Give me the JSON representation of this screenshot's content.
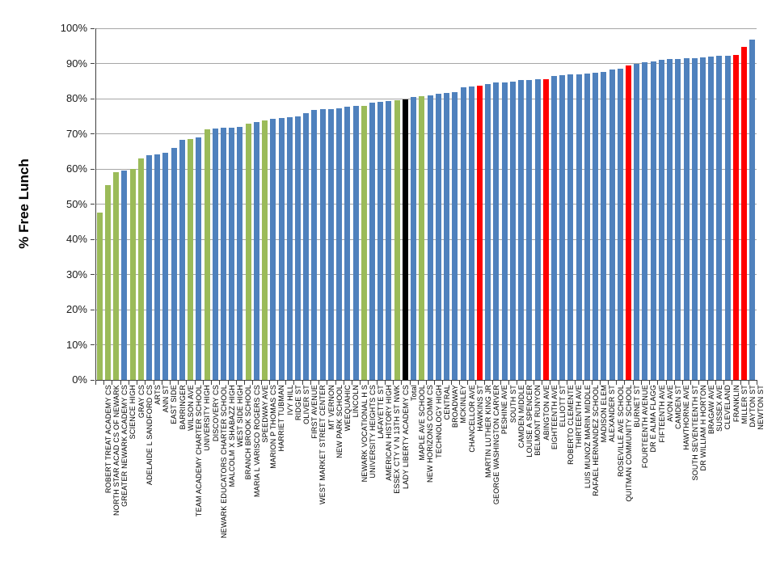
{
  "chart_data": {
    "type": "bar",
    "title": "",
    "xlabel": "",
    "ylabel": "% Free Lunch",
    "ylim": [
      0,
      100
    ],
    "grid": true,
    "legend": false,
    "yticks": [
      "0%",
      "10%",
      "20%",
      "30%",
      "40%",
      "50%",
      "60%",
      "70%",
      "80%",
      "90%",
      "100%"
    ],
    "palette": {
      "blue": "#4F81BD",
      "green": "#9BBB59",
      "red": "#FF0000",
      "black": "#000000"
    },
    "bars": [
      {
        "label": "ROBERT TREAT ACADEMY CS",
        "value": 47.5,
        "color": "green"
      },
      {
        "label": "NORTH STAR ACAD CS OF NEWARK",
        "value": 55.5,
        "color": "green"
      },
      {
        "label": "GREATER NEWARK ACADEMY CS",
        "value": 59.0,
        "color": "green"
      },
      {
        "label": "SCIENCE HIGH",
        "value": 59.5,
        "color": "blue"
      },
      {
        "label": "GRAY CS",
        "value": 60.0,
        "color": "green"
      },
      {
        "label": "ADELAIDE L  SANDFORD CS",
        "value": 63.0,
        "color": "green"
      },
      {
        "label": "ARTS",
        "value": 63.8,
        "color": "blue"
      },
      {
        "label": "ANN ST",
        "value": 64.1,
        "color": "blue"
      },
      {
        "label": "EAST SIDE",
        "value": 64.5,
        "color": "blue"
      },
      {
        "label": "BARRINGER",
        "value": 66.0,
        "color": "blue"
      },
      {
        "label": "WILSON AVE",
        "value": 68.2,
        "color": "blue"
      },
      {
        "label": "TEAM ACADEMY CHARTER SCHOOL",
        "value": 68.6,
        "color": "green"
      },
      {
        "label": "UNIVERSITY HIGH",
        "value": 68.9,
        "color": "blue"
      },
      {
        "label": "DISCOVERY CS",
        "value": 71.2,
        "color": "green"
      },
      {
        "label": "NEWARK EDUCATORS CHARTER SCHOOL",
        "value": 71.5,
        "color": "blue"
      },
      {
        "label": "MALCOLM X SHABAZZ HIGH",
        "value": 71.7,
        "color": "blue"
      },
      {
        "label": "WEST SIDE HIGH",
        "value": 71.8,
        "color": "blue"
      },
      {
        "label": "BRANCH BROOK SCHOOL",
        "value": 72.0,
        "color": "blue"
      },
      {
        "label": "MARIA L  VARISCO  ROGERS CS",
        "value": 72.8,
        "color": "green"
      },
      {
        "label": "SPEEDWAY AVE",
        "value": 73.3,
        "color": "blue"
      },
      {
        "label": "MARION P  THOMAS CS",
        "value": 73.8,
        "color": "green"
      },
      {
        "label": "HARRIET TUBMAN",
        "value": 74.2,
        "color": "blue"
      },
      {
        "label": "IVY HILL",
        "value": 74.5,
        "color": "blue"
      },
      {
        "label": "RIDGE ST",
        "value": 74.7,
        "color": "blue"
      },
      {
        "label": "OLIVER ST",
        "value": 74.9,
        "color": "blue"
      },
      {
        "label": "FIRST AVENUE",
        "value": 75.8,
        "color": "blue"
      },
      {
        "label": "WEST MARKET STREET CENTER",
        "value": 76.7,
        "color": "blue"
      },
      {
        "label": "MT VERNON",
        "value": 76.9,
        "color": "blue"
      },
      {
        "label": "NEW PARK SCHOOL",
        "value": 77.1,
        "color": "blue"
      },
      {
        "label": "WEEQUAHIC",
        "value": 77.3,
        "color": "blue"
      },
      {
        "label": "LINCOLN",
        "value": 77.7,
        "color": "blue"
      },
      {
        "label": "NEWARK VOCATIONAL H S",
        "value": 78.0,
        "color": "blue"
      },
      {
        "label": "UNIVERSITY HEIGHTS CS",
        "value": 78.0,
        "color": "green"
      },
      {
        "label": "LAFAYETTE ST",
        "value": 78.8,
        "color": "blue"
      },
      {
        "label": "AMERICAN HISTORY HIGH",
        "value": 79.0,
        "color": "blue"
      },
      {
        "label": "ESSEX CTY V N 13TH ST NWK",
        "value": 79.2,
        "color": "blue"
      },
      {
        "label": "LADY LIBERTY ACADEMY CS",
        "value": 79.6,
        "color": "green"
      },
      {
        "label": "Total",
        "value": 79.8,
        "color": "black"
      },
      {
        "label": "MAPLE AVE SCHOOL",
        "value": 80.4,
        "color": "blue"
      },
      {
        "label": "NEW HORIZONS COMM  CS",
        "value": 80.6,
        "color": "green"
      },
      {
        "label": "TECHNOLOGY HIGH",
        "value": 81.0,
        "color": "blue"
      },
      {
        "label": "CENTRAL",
        "value": 81.3,
        "color": "blue"
      },
      {
        "label": "BROADWAY",
        "value": 81.5,
        "color": "blue"
      },
      {
        "label": "MCKINLEY",
        "value": 81.9,
        "color": "blue"
      },
      {
        "label": "CHANCELLOR  AVE",
        "value": 83.3,
        "color": "blue"
      },
      {
        "label": "HAWKINS ST",
        "value": 83.5,
        "color": "blue"
      },
      {
        "label": "MARTIN LUTHER KING JR",
        "value": 83.6,
        "color": "red"
      },
      {
        "label": "GEORGE  WASHINGTON CARVER",
        "value": 84.2,
        "color": "blue"
      },
      {
        "label": "PESHINE  AVE",
        "value": 84.5,
        "color": "blue"
      },
      {
        "label": "SOUTH ST",
        "value": 84.7,
        "color": "blue"
      },
      {
        "label": "CAMDEN MIDDLE",
        "value": 84.9,
        "color": "blue"
      },
      {
        "label": "LOUISE A  SPENCER",
        "value": 85.2,
        "color": "blue"
      },
      {
        "label": "BELMONT RUNYON",
        "value": 85.4,
        "color": "blue"
      },
      {
        "label": "ABINGTON AVE",
        "value": 85.5,
        "color": "blue"
      },
      {
        "label": "EIGHTEENTH AVE",
        "value": 85.6,
        "color": "red"
      },
      {
        "label": "ELLIOTT ST",
        "value": 86.4,
        "color": "blue"
      },
      {
        "label": "ROBERTO CLEMENTE",
        "value": 86.7,
        "color": "blue"
      },
      {
        "label": "THIRTEENTH AVE",
        "value": 86.9,
        "color": "blue"
      },
      {
        "label": "LUIS MUNOZ MARIN MIDDLE",
        "value": 87.0,
        "color": "blue"
      },
      {
        "label": "RAFAEL HERNANDEZ SCHOOL",
        "value": 87.1,
        "color": "blue"
      },
      {
        "label": "MADISON ELEM",
        "value": 87.3,
        "color": "blue"
      },
      {
        "label": "ALEXANDER ST",
        "value": 87.5,
        "color": "blue"
      },
      {
        "label": "ROSEVILLE AVE SCHOOL",
        "value": 88.2,
        "color": "blue"
      },
      {
        "label": "QUITMAN COMMUNITY SCHOOL",
        "value": 88.5,
        "color": "blue"
      },
      {
        "label": "BURNET ST",
        "value": 89.4,
        "color": "red"
      },
      {
        "label": "FOURTEENTH AVENUE",
        "value": 89.9,
        "color": "blue"
      },
      {
        "label": "DR E ALMA FLAGG",
        "value": 90.3,
        "color": "blue"
      },
      {
        "label": "FIFTEENTH AVE",
        "value": 90.6,
        "color": "blue"
      },
      {
        "label": "AVON AVE",
        "value": 91.0,
        "color": "blue"
      },
      {
        "label": "CAMDEN ST",
        "value": 91.2,
        "color": "blue"
      },
      {
        "label": "HAWTHORNE AVE",
        "value": 91.3,
        "color": "blue"
      },
      {
        "label": "SOUTH SEVENTEENTH ST",
        "value": 91.4,
        "color": "blue"
      },
      {
        "label": "DR WILLIAM H HORTON",
        "value": 91.5,
        "color": "blue"
      },
      {
        "label": "BRAGAW AVE",
        "value": 91.7,
        "color": "blue"
      },
      {
        "label": "SUSSEX AVE",
        "value": 92.0,
        "color": "blue"
      },
      {
        "label": "CLEVELAND",
        "value": 92.1,
        "color": "blue"
      },
      {
        "label": "FRANKLIN",
        "value": 92.2,
        "color": "blue"
      },
      {
        "label": "MILLER ST",
        "value": 92.5,
        "color": "red"
      },
      {
        "label": "DAYTON ST",
        "value": 94.8,
        "color": "red"
      },
      {
        "label": "NEWTON ST",
        "value": 96.8,
        "color": "blue"
      }
    ]
  }
}
